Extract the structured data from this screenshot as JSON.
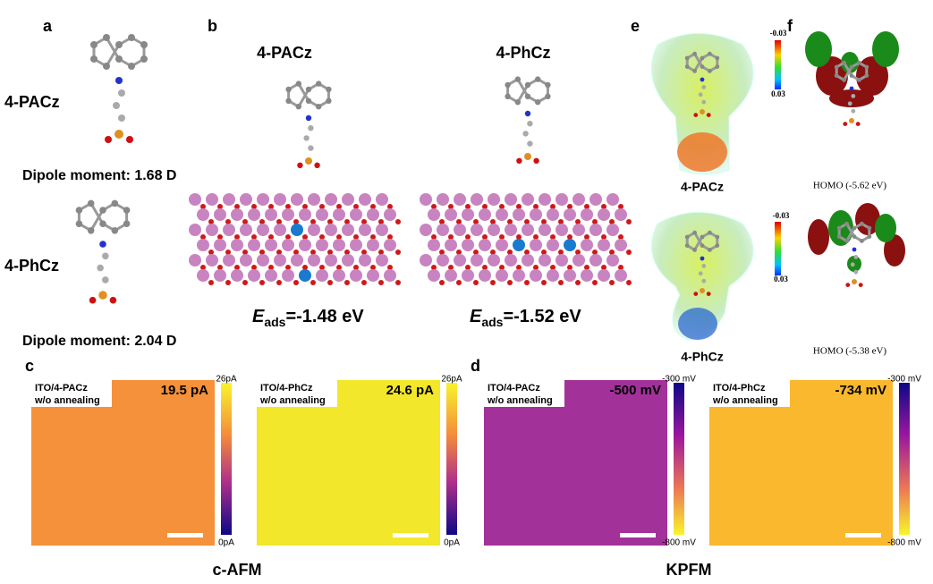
{
  "panels": {
    "a": {
      "label": "a",
      "molecules": [
        {
          "name": "4-PACz",
          "dipole": "Dipole moment: 1.68 D"
        },
        {
          "name": "4-PhCz",
          "dipole": "Dipole moment: 2.04 D"
        }
      ]
    },
    "b": {
      "label": "b",
      "structures": [
        {
          "name": "4-PACz",
          "energy_symbol": "E",
          "energy_sub": "ads",
          "energy_value": "=-1.48 eV"
        },
        {
          "name": "4-PhCz",
          "energy_symbol": "E",
          "energy_sub": "ads",
          "energy_value": "=-1.52 eV"
        }
      ]
    },
    "e": {
      "label": "e",
      "maps": [
        {
          "name": "4-PACz",
          "scale_top": "-0.03",
          "scale_bottom": "0.03"
        },
        {
          "name": "4-PhCz",
          "scale_top": "-0.03",
          "scale_bottom": "0.03"
        }
      ]
    },
    "f": {
      "label": "f",
      "orbitals": [
        "HOMO (-5.62 eV)",
        "HOMO (-5.38 eV)"
      ]
    },
    "c": {
      "label": "c",
      "title": "c-AFM",
      "images": [
        {
          "sample": "ITO/4-PACz",
          "condition": "w/o annealing",
          "reading": "19.5 pA",
          "scale_top": "26pA",
          "scale_bottom": "0pA"
        },
        {
          "sample": "ITO/4-PhCz",
          "condition": "w/o annealing",
          "reading": "24.6 pA",
          "scale_top": "26pA",
          "scale_bottom": "0pA"
        }
      ]
    },
    "d": {
      "label": "d",
      "title": "KPFM",
      "images": [
        {
          "sample": "ITO/4-PACz",
          "condition": "w/o annealing",
          "reading": "-500 mV",
          "scale_top": "-300 mV",
          "scale_bottom": "-800 mV"
        },
        {
          "sample": "ITO/4-PhCz",
          "condition": "w/o annealing",
          "reading": "-734 mV",
          "scale_top": "-300 mV",
          "scale_bottom": "-800 mV"
        }
      ]
    }
  }
}
